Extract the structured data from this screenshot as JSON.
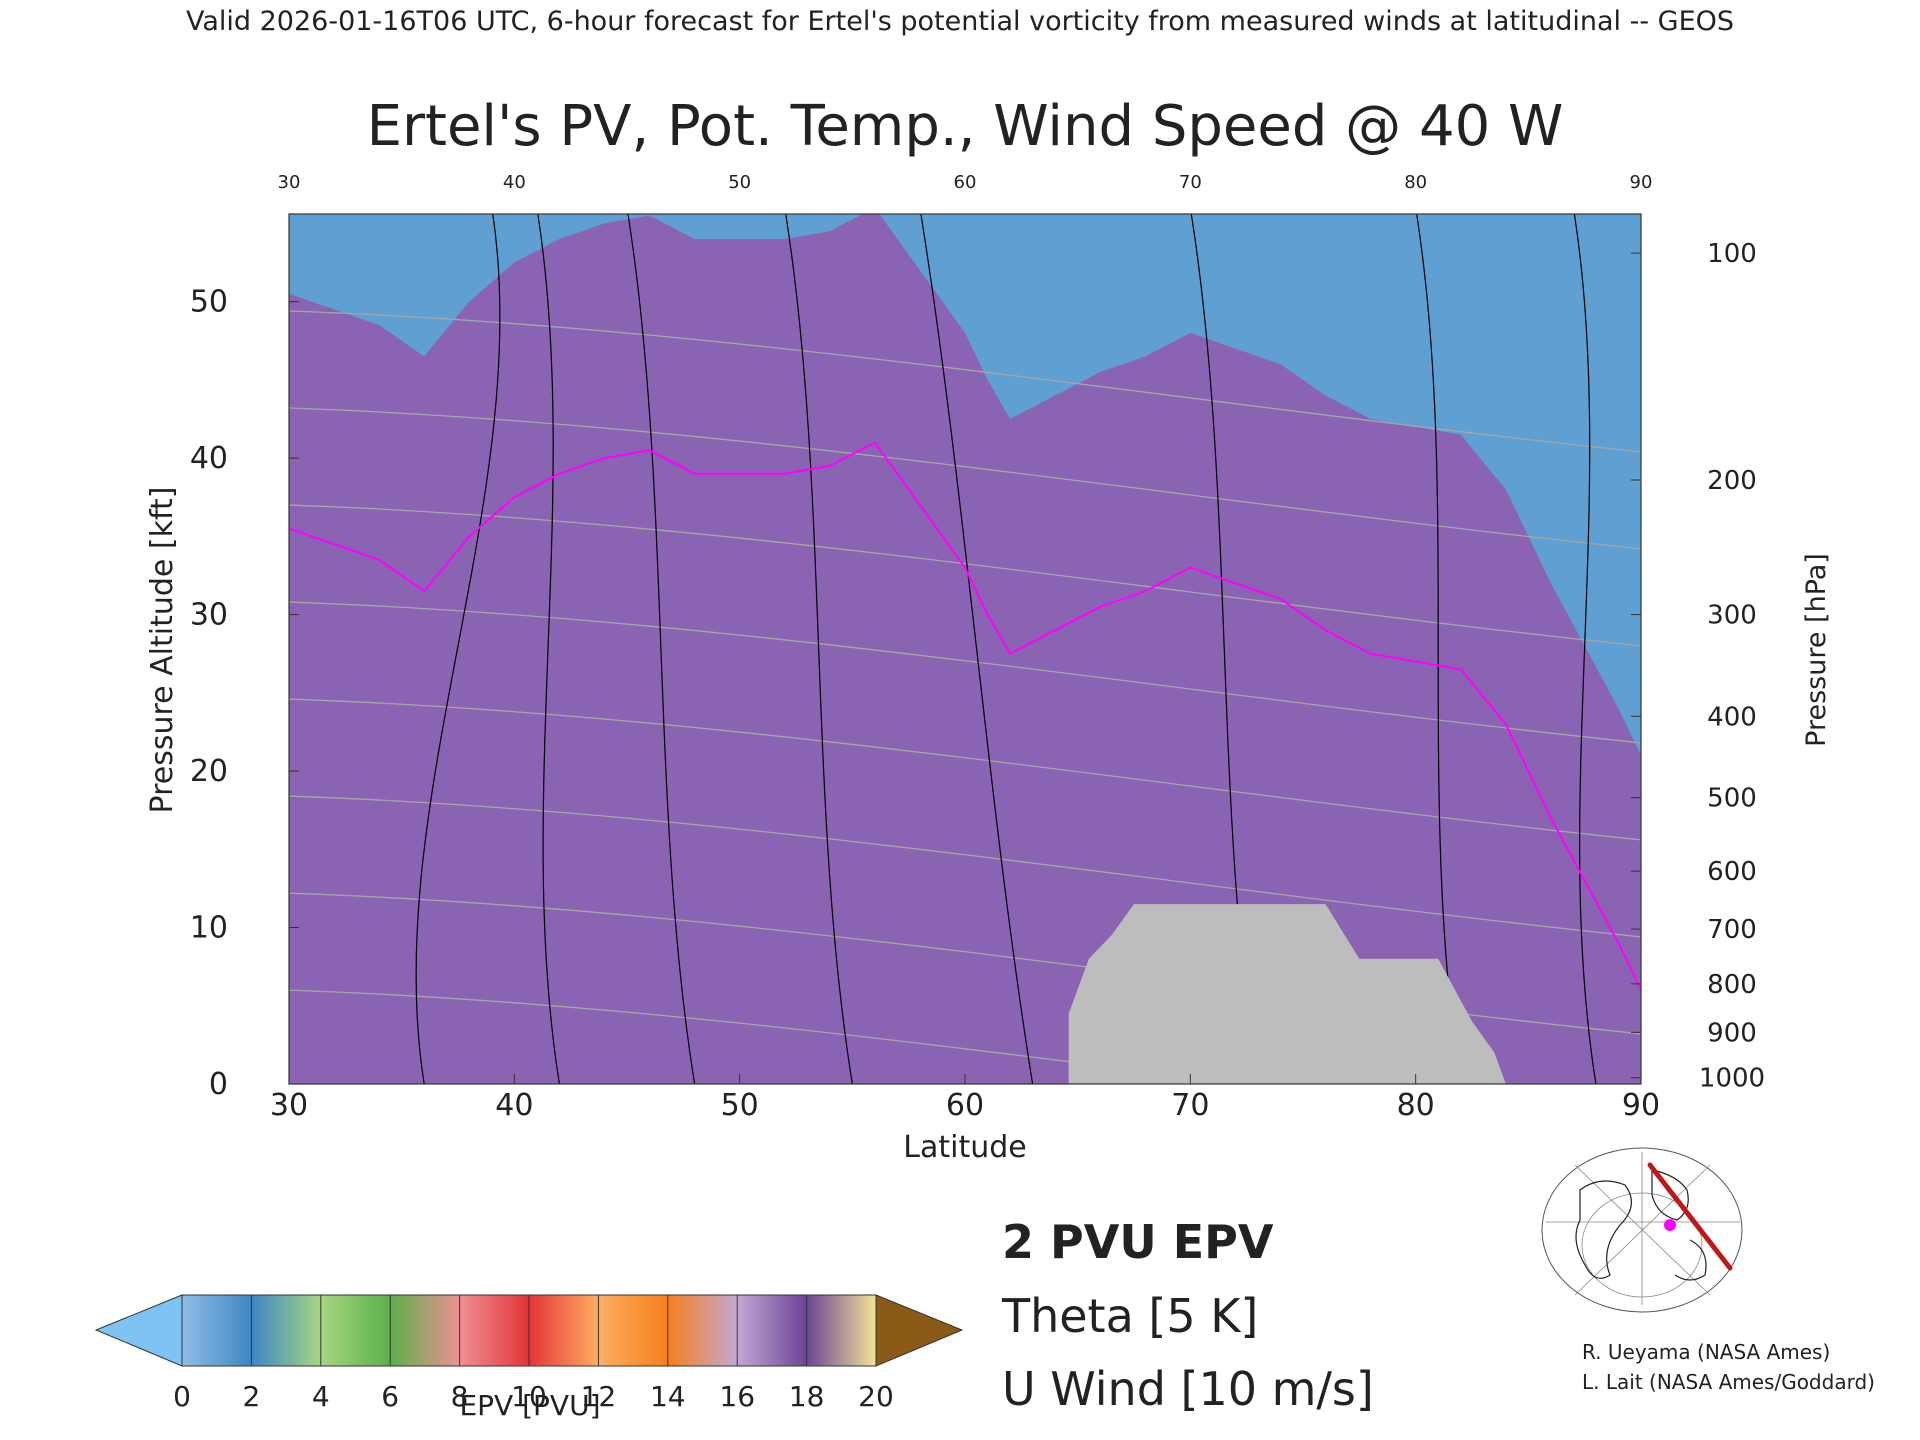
{
  "header": {
    "valid_line": "Valid 2026-01-16T06 UTC, 6-hour forecast for Ertel's potential vorticity from measured winds at latitudinal -- GEOS"
  },
  "chart_data": {
    "type": "heatmap",
    "title": "Ertel's PV, Pot. Temp., Wind Speed @ 40 W",
    "xlabel": "Latitude",
    "ylabel": "Pressure Altitude [kft]",
    "ylabel_right": "Pressure [hPa]",
    "xlim": [
      30,
      90
    ],
    "ylim": [
      0,
      55.6
    ],
    "x_ticks": [
      "30",
      "40",
      "50",
      "60",
      "70",
      "80",
      "90"
    ],
    "x_ticks_top": [
      "30",
      "40",
      "50",
      "60",
      "70",
      "80",
      "90"
    ],
    "y_ticks": [
      "0",
      "10",
      "20",
      "30",
      "40",
      "50"
    ],
    "p_ticks": [
      {
        "label": "1000",
        "kft": 0.4
      },
      {
        "label": "900",
        "kft": 3.3
      },
      {
        "label": "800",
        "kft": 6.4
      },
      {
        "label": "700",
        "kft": 9.9
      },
      {
        "label": "600",
        "kft": 13.6
      },
      {
        "label": "500",
        "kft": 18.3
      },
      {
        "label": "400",
        "kft": 23.5
      },
      {
        "label": "300",
        "kft": 30.0
      },
      {
        "label": "200",
        "kft": 38.6
      },
      {
        "label": "100",
        "kft": 53.1
      }
    ],
    "tropopause_2pvu": [
      [
        30,
        35.5
      ],
      [
        32,
        34.5
      ],
      [
        34,
        33.5
      ],
      [
        36,
        31.5
      ],
      [
        38,
        35
      ],
      [
        40,
        37.5
      ],
      [
        42,
        39
      ],
      [
        44,
        40
      ],
      [
        46,
        40.5
      ],
      [
        48,
        39
      ],
      [
        50,
        39
      ],
      [
        52,
        39
      ],
      [
        54,
        39.5
      ],
      [
        56,
        41
      ],
      [
        58,
        37
      ],
      [
        60,
        33
      ],
      [
        61,
        30
      ],
      [
        62,
        27.5
      ],
      [
        64,
        29
      ],
      [
        66,
        30.5
      ],
      [
        68,
        31.5
      ],
      [
        70,
        33
      ],
      [
        72,
        32
      ],
      [
        74,
        31
      ],
      [
        76,
        29
      ],
      [
        78,
        27.5
      ],
      [
        80,
        27
      ],
      [
        82,
        26.5
      ],
      [
        84,
        23
      ],
      [
        86,
        17
      ],
      [
        87.5,
        13
      ],
      [
        89,
        9
      ],
      [
        90,
        6
      ]
    ],
    "epv_bands": [
      {
        "bottom": 0,
        "color": "#5f9fd2"
      },
      {
        "bottom": 2.5,
        "color": "#8ccc6a"
      },
      {
        "bottom": 5,
        "color": "#e9898e"
      },
      {
        "bottom": 8,
        "color": "#e8383c"
      },
      {
        "bottom": 11,
        "color": "#f68a1f"
      },
      {
        "bottom": 15,
        "color": "#8a63b3"
      }
    ],
    "theta_levels": [
      "310",
      "320",
      "330",
      "340",
      "350",
      "360",
      "370",
      "380"
    ],
    "u_wind_levels": [
      "0",
      "10",
      "20",
      "30",
      "40",
      "50"
    ],
    "legend": {
      "epv_label": "2 PVU EPV",
      "theta_label": "Theta [5 K]",
      "uwind_label": "U Wind [10 m/s]",
      "epv_color": "#ff00ff",
      "theta_color": "#a6a6a6",
      "uwind_color": "#000000"
    },
    "colorbar": {
      "label": "EPV [PVU]",
      "ticks": [
        "0",
        "2",
        "4",
        "6",
        "8",
        "10",
        "12",
        "14",
        "16",
        "18",
        "20"
      ],
      "colors": [
        "#8fbde8",
        "#3e86c2",
        "#a6d682",
        "#5bb04a",
        "#ee8f94",
        "#e33437",
        "#ffae62",
        "#f4801c",
        "#c4a8d4",
        "#6c4496",
        "#f2e496"
      ],
      "under_color": "#7ec3f2",
      "over_color": "#8b5a17"
    },
    "credits": [
      "R. Ueyama (NASA Ames)",
      "L. Lait (NASA Ames/Goddard)"
    ]
  }
}
